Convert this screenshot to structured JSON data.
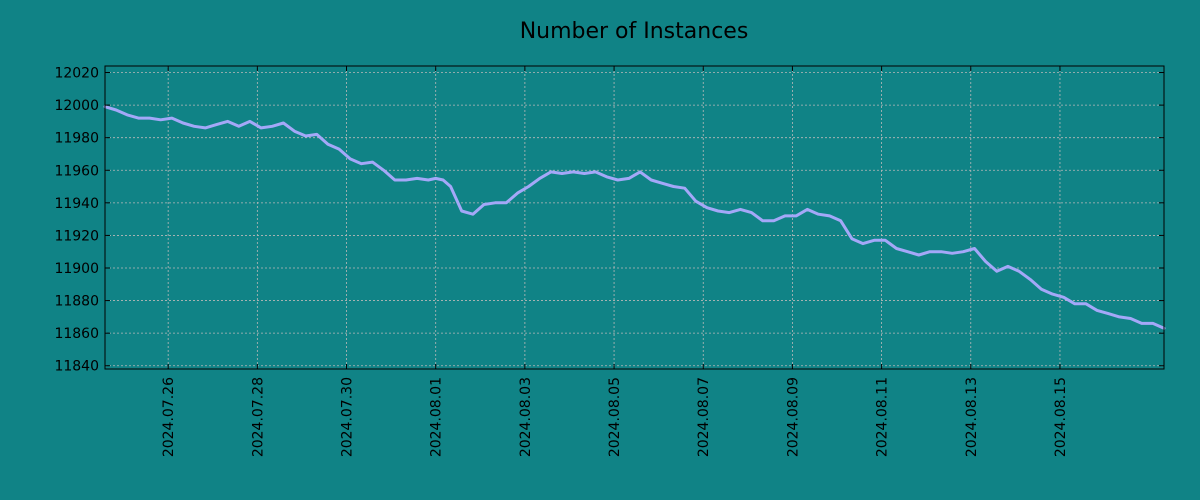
{
  "chart_data": {
    "type": "line",
    "title": "Number of Instances",
    "xlabel": "",
    "ylabel": "",
    "x_range": [
      "2024-07-24 14:00",
      "2024-08-17 08:00"
    ],
    "ylim": [
      11838,
      12024
    ],
    "yticks": [
      11840,
      11860,
      11880,
      11900,
      11920,
      11940,
      11960,
      11980,
      12000,
      12020
    ],
    "xticks": [
      "2024.07.26",
      "2024.07.28",
      "2024.07.30",
      "2024.08.01",
      "2024.08.03",
      "2024.08.05",
      "2024.08.07",
      "2024.08.09",
      "2024.08.11",
      "2024.08.13",
      "2024.08.15"
    ],
    "grid": true,
    "series": [
      {
        "color": "#a4a8f8",
        "x": [
          "2024-07-24 14:00",
          "2024-07-24 20:00",
          "2024-07-25 02:00",
          "2024-07-25 08:00",
          "2024-07-25 14:00",
          "2024-07-25 20:00",
          "2024-07-26 02:00",
          "2024-07-26 08:00",
          "2024-07-26 14:00",
          "2024-07-26 20:00",
          "2024-07-27 02:00",
          "2024-07-27 08:00",
          "2024-07-27 14:00",
          "2024-07-27 20:00",
          "2024-07-28 02:00",
          "2024-07-28 08:00",
          "2024-07-28 14:00",
          "2024-07-28 20:00",
          "2024-07-29 02:00",
          "2024-07-29 08:00",
          "2024-07-29 14:00",
          "2024-07-29 20:00",
          "2024-07-30 02:00",
          "2024-07-30 08:00",
          "2024-07-30 14:00",
          "2024-07-30 20:00",
          "2024-07-31 02:00",
          "2024-07-31 08:00",
          "2024-07-31 14:00",
          "2024-07-31 20:00",
          "2024-08-01 00:00",
          "2024-08-01 04:00",
          "2024-08-01 08:00",
          "2024-08-01 14:00",
          "2024-08-01 20:00",
          "2024-08-02 02:00",
          "2024-08-02 08:00",
          "2024-08-02 14:00",
          "2024-08-02 20:00",
          "2024-08-03 02:00",
          "2024-08-03 08:00",
          "2024-08-03 14:00",
          "2024-08-03 20:00",
          "2024-08-04 02:00",
          "2024-08-04 08:00",
          "2024-08-04 14:00",
          "2024-08-04 20:00",
          "2024-08-05 02:00",
          "2024-08-05 08:00",
          "2024-08-05 14:00",
          "2024-08-05 20:00",
          "2024-08-06 02:00",
          "2024-08-06 08:00",
          "2024-08-06 14:00",
          "2024-08-06 20:00",
          "2024-08-07 02:00",
          "2024-08-07 08:00",
          "2024-08-07 14:00",
          "2024-08-07 20:00",
          "2024-08-08 02:00",
          "2024-08-08 08:00",
          "2024-08-08 14:00",
          "2024-08-08 20:00",
          "2024-08-09 02:00",
          "2024-08-09 08:00",
          "2024-08-09 14:00",
          "2024-08-09 20:00",
          "2024-08-10 02:00",
          "2024-08-10 08:00",
          "2024-08-10 14:00",
          "2024-08-10 20:00",
          "2024-08-11 02:00",
          "2024-08-11 08:00",
          "2024-08-11 14:00",
          "2024-08-11 20:00",
          "2024-08-12 02:00",
          "2024-08-12 08:00",
          "2024-08-12 14:00",
          "2024-08-12 20:00",
          "2024-08-13 02:00",
          "2024-08-13 08:00",
          "2024-08-13 14:00",
          "2024-08-13 20:00",
          "2024-08-14 02:00",
          "2024-08-14 08:00",
          "2024-08-14 14:00",
          "2024-08-14 20:00",
          "2024-08-15 02:00",
          "2024-08-15 08:00",
          "2024-08-15 14:00",
          "2024-08-15 20:00",
          "2024-08-16 02:00",
          "2024-08-16 08:00",
          "2024-08-16 14:00",
          "2024-08-16 20:00",
          "2024-08-17 02:00",
          "2024-08-17 08:00"
        ],
        "values": [
          11999,
          11997,
          11994,
          11992,
          11992,
          11991,
          11992,
          11989,
          11987,
          11986,
          11988,
          11990,
          11987,
          11990,
          11986,
          11987,
          11989,
          11984,
          11981,
          11982,
          11976,
          11973,
          11967,
          11964,
          11965,
          11960,
          11954,
          11954,
          11955,
          11954,
          11955,
          11954,
          11950,
          11935,
          11933,
          11939,
          11940,
          11940,
          11946,
          11950,
          11955,
          11959,
          11958,
          11959,
          11958,
          11959,
          11956,
          11954,
          11955,
          11959,
          11954,
          11952,
          11950,
          11949,
          11941,
          11937,
          11935,
          11934,
          11936,
          11934,
          11929,
          11929,
          11932,
          11932,
          11936,
          11933,
          11932,
          11929,
          11918,
          11915,
          11917,
          11917,
          11912,
          11910,
          11908,
          11910,
          11910,
          11909,
          11910,
          11912,
          11904,
          11898,
          11901,
          11898,
          11893,
          11887,
          11884,
          11882,
          11878,
          11878,
          11874,
          11872,
          11870,
          11869,
          11866,
          11866,
          11863
        ]
      }
    ]
  }
}
